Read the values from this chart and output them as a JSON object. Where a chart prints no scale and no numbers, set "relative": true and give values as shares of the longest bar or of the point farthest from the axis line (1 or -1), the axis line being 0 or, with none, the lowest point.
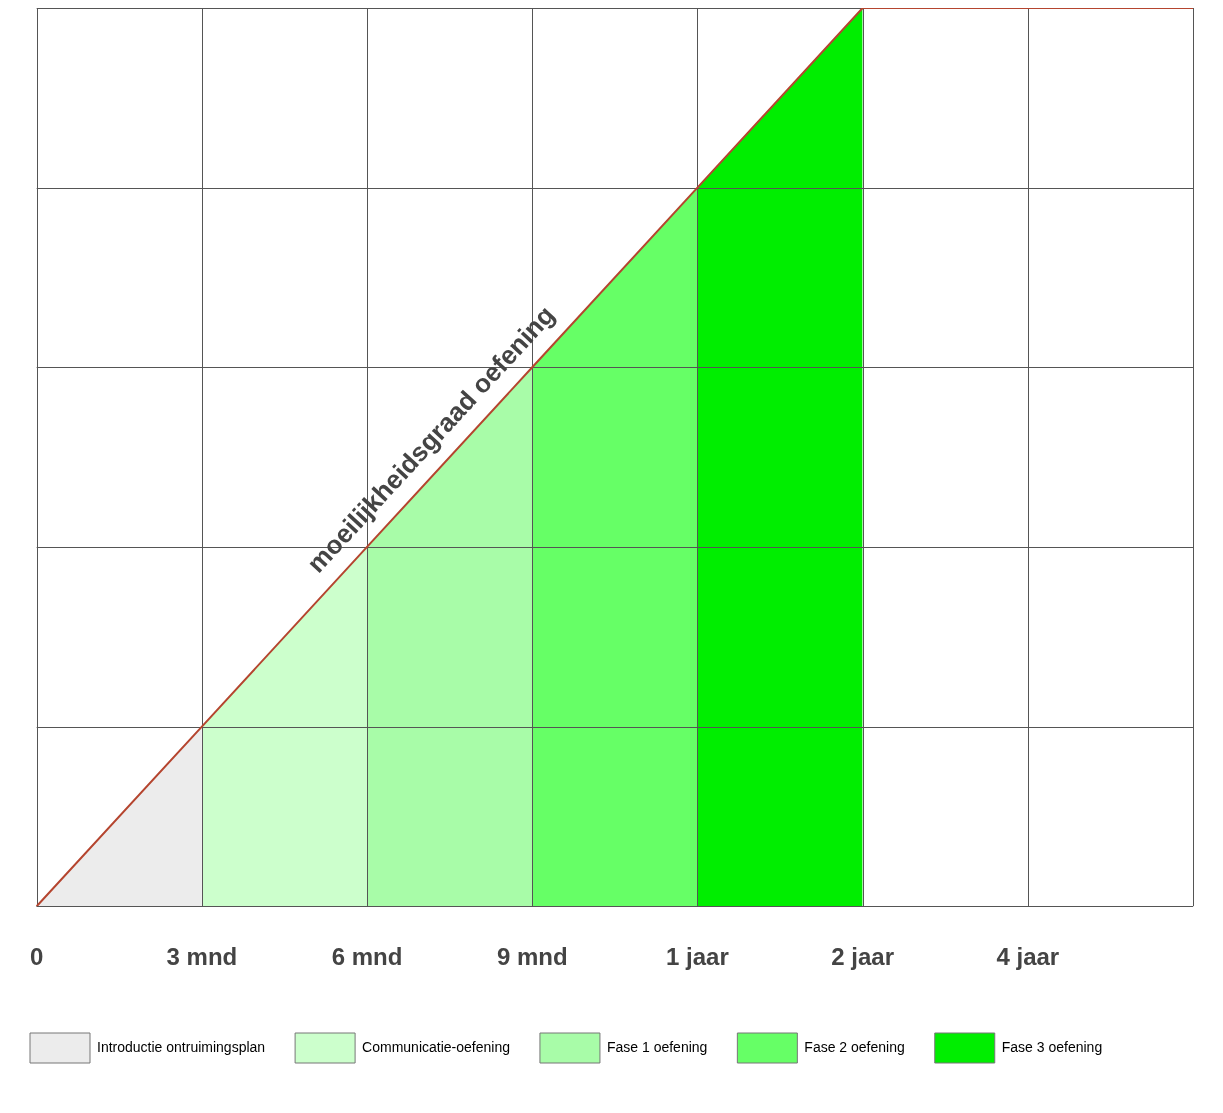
{
  "chart_data": {
    "type": "line",
    "relative": true,
    "grid": true,
    "legend": "bottom",
    "categories": [
      "0",
      "3 mnd",
      "6 mnd",
      "9 mnd",
      "1 jaar",
      "2 jaar",
      "4 jaar",
      null
    ],
    "series": [
      {
        "name": "Introductie ontruimingsplan",
        "type": "area",
        "color": "#ececec",
        "values": [
          0,
          0.2,
          null,
          null,
          null,
          null,
          null,
          null
        ]
      },
      {
        "name": "Communicatie-oefening",
        "type": "area",
        "color": "#ccffcc",
        "values": [
          null,
          0.2,
          0.4,
          null,
          null,
          null,
          null,
          null
        ]
      },
      {
        "name": "Fase 1 oefening",
        "type": "area",
        "color": "#a8fca8",
        "values": [
          null,
          null,
          0.4,
          0.6,
          null,
          null,
          null,
          null
        ]
      },
      {
        "name": "Fase 2 oefening",
        "type": "area",
        "color": "#66ff66",
        "values": [
          null,
          null,
          null,
          0.6,
          0.8,
          null,
          null,
          null
        ]
      },
      {
        "name": "Fase 3 oefening",
        "type": "area",
        "color": "#00ee00",
        "values": [
          null,
          null,
          null,
          null,
          0.8,
          1,
          null,
          null
        ]
      },
      {
        "name": "moeilijkheidsgraad oefening",
        "color": "#b5452f",
        "values": [
          0,
          0.2,
          0.4,
          0.6,
          0.8,
          1,
          1,
          1
        ]
      }
    ]
  }
}
